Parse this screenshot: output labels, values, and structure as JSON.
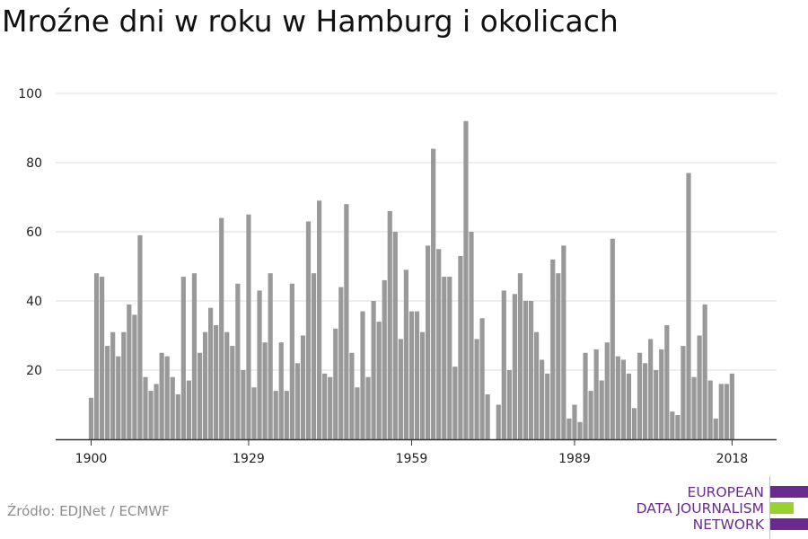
{
  "title": "Mroźne dni w roku w Hamburg i okolicach",
  "source": "Źródło: EDJNet / ECMWF",
  "logo": {
    "line1": "EUROPEAN",
    "line2": "DATA JOURNALISM",
    "line3": "NETWORK",
    "colors": {
      "primary": "#6b2a90",
      "accent": "#9bd12e"
    }
  },
  "colors": {
    "bar": "#999999",
    "grid": "#dddddd",
    "axis": "#333333"
  },
  "chart_data": {
    "type": "bar",
    "title": "Mroźne dni w roku w Hamburg i okolicach",
    "xlabel": "",
    "ylabel": "",
    "ylim": [
      0,
      100
    ],
    "yticks": [
      20,
      40,
      60,
      80,
      100
    ],
    "xticks": [
      1900,
      1929,
      1959,
      1989,
      2018
    ],
    "grid": true,
    "x": [
      1900,
      1901,
      1902,
      1903,
      1904,
      1905,
      1906,
      1907,
      1908,
      1909,
      1910,
      1911,
      1912,
      1913,
      1914,
      1915,
      1916,
      1917,
      1918,
      1919,
      1920,
      1921,
      1922,
      1923,
      1924,
      1925,
      1926,
      1927,
      1928,
      1929,
      1930,
      1931,
      1932,
      1933,
      1934,
      1935,
      1936,
      1937,
      1938,
      1939,
      1940,
      1941,
      1942,
      1943,
      1944,
      1945,
      1946,
      1947,
      1948,
      1949,
      1950,
      1951,
      1952,
      1953,
      1954,
      1955,
      1956,
      1957,
      1958,
      1959,
      1960,
      1961,
      1962,
      1963,
      1964,
      1965,
      1966,
      1967,
      1968,
      1969,
      1970,
      1971,
      1972,
      1973,
      1974,
      1975,
      1976,
      1977,
      1978,
      1979,
      1980,
      1981,
      1982,
      1983,
      1984,
      1985,
      1986,
      1987,
      1988,
      1989,
      1990,
      1991,
      1992,
      1993,
      1994,
      1995,
      1996,
      1997,
      1998,
      1999,
      2000,
      2001,
      2002,
      2003,
      2004,
      2005,
      2006,
      2007,
      2008,
      2009,
      2010,
      2011,
      2012,
      2013,
      2014,
      2015,
      2016,
      2017,
      2018,
      2019
    ],
    "values": [
      12,
      48,
      47,
      27,
      31,
      24,
      31,
      39,
      36,
      59,
      18,
      14,
      16,
      25,
      24,
      18,
      13,
      47,
      17,
      48,
      25,
      31,
      38,
      33,
      64,
      31,
      27,
      45,
      20,
      65,
      15,
      43,
      28,
      48,
      14,
      28,
      14,
      45,
      22,
      30,
      63,
      48,
      69,
      19,
      18,
      32,
      44,
      68,
      25,
      15,
      37,
      18,
      40,
      34,
      46,
      66,
      60,
      29,
      49,
      37,
      37,
      31,
      56,
      84,
      55,
      47,
      47,
      21,
      53,
      92,
      60,
      29,
      35,
      13,
      0,
      10,
      43,
      20,
      42,
      48,
      40,
      40,
      31,
      23,
      19,
      52,
      48,
      56,
      6,
      10,
      5,
      25,
      14,
      26,
      17,
      28,
      58,
      24,
      23,
      19,
      9,
      25,
      22,
      29,
      20,
      26,
      33,
      8,
      7,
      27,
      77,
      18,
      30,
      39,
      17,
      6,
      16,
      16,
      19,
      null
    ]
  }
}
